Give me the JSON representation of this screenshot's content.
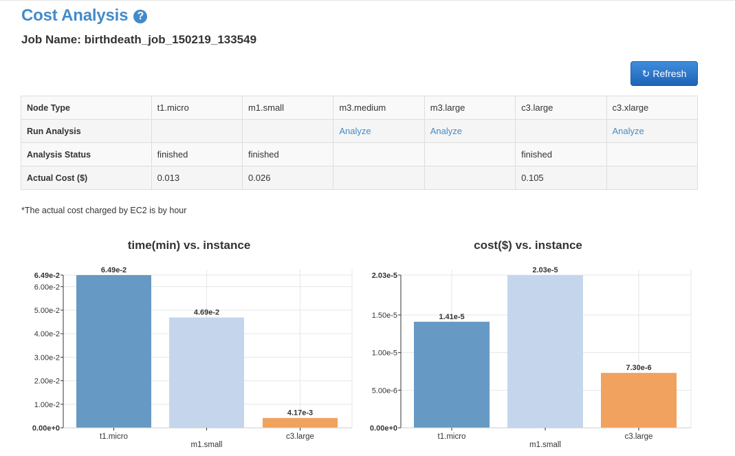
{
  "header": {
    "title": "Cost Analysis",
    "help_icon": "?",
    "job_name": "Job Name: birthdeath_job_150219_133549"
  },
  "toolbar": {
    "refresh_label": "Refresh",
    "refresh_icon": "↻"
  },
  "table": {
    "rows": [
      {
        "label": "Node Type",
        "cells": [
          "t1.micro",
          "m1.small",
          "m3.medium",
          "m3.large",
          "c3.large",
          "c3.xlarge"
        ]
      },
      {
        "label": "Run Analysis",
        "cells": [
          "",
          "",
          "Analyze",
          "Analyze",
          "",
          "Analyze"
        ]
      },
      {
        "label": "Analysis Status",
        "cells": [
          "finished",
          "finished",
          "",
          "",
          "finished",
          ""
        ]
      },
      {
        "label": "Actual Cost ($)",
        "cells": [
          "0.013",
          "0.026",
          "",
          "",
          "0.105",
          ""
        ]
      }
    ]
  },
  "footnote": "*The actual cost charged by EC2 is by hour",
  "colors": {
    "accent": "#428bca",
    "bar1": "#6699c3",
    "bar2": "#c5d6ec",
    "bar3": "#f0a25e"
  },
  "chart_data": [
    {
      "type": "bar",
      "title": "time(min) vs. instance",
      "categories": [
        "t1.micro",
        "m1.small",
        "c3.large"
      ],
      "values": [
        0.0649,
        0.0469,
        0.00417
      ],
      "value_labels": [
        "6.49e-2",
        "4.69e-2",
        "4.17e-3"
      ],
      "ylim": [
        0,
        0.0649
      ],
      "yticks": [
        0,
        0.01,
        0.02,
        0.03,
        0.04,
        0.05,
        0.06,
        0.0649
      ],
      "ytick_labels": [
        "0.00e+0",
        "1.00e-2",
        "2.00e-2",
        "3.00e-2",
        "4.00e-2",
        "5.00e-2",
        "6.00e-2",
        "6.49e-2"
      ],
      "grid": true
    },
    {
      "type": "bar",
      "title": "cost($) vs. instance",
      "categories": [
        "t1.micro",
        "m1.small",
        "c3.large"
      ],
      "values": [
        1.41e-05,
        2.03e-05,
        7.3e-06
      ],
      "value_labels": [
        "1.41e-5",
        "2.03e-5",
        "7.30e-6"
      ],
      "ylim": [
        0,
        2.03e-05
      ],
      "yticks": [
        0,
        5e-06,
        1e-05,
        1.5e-05,
        2.03e-05
      ],
      "ytick_labels": [
        "0.00e+0",
        "5.00e-6",
        "1.00e-5",
        "1.50e-5",
        "2.03e-5"
      ],
      "grid": true
    }
  ]
}
